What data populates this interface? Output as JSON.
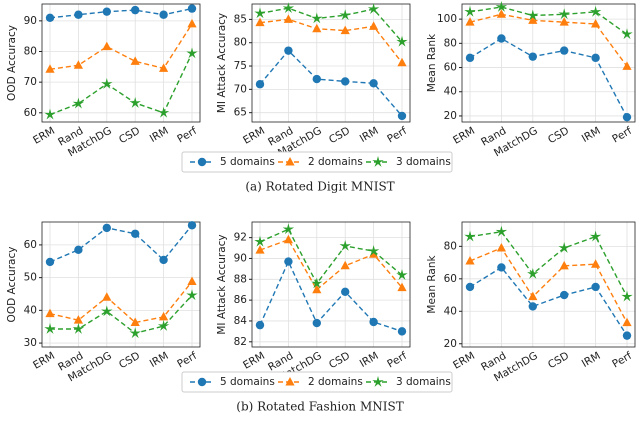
{
  "chart_data": [
    {
      "type": "line",
      "ylabel": "OOD Accuracy",
      "categories": [
        "ERM",
        "Rand",
        "MatchDG",
        "CSD",
        "IRM",
        "Perf"
      ],
      "series": [
        {
          "name": "5 domains",
          "color": "#1f77b4",
          "marker": "circle",
          "values": [
            91,
            92,
            93,
            93.5,
            92,
            94
          ]
        },
        {
          "name": "2 domains",
          "color": "#ff7f0e",
          "marker": "triangle",
          "values": [
            74.2,
            75.5,
            81.6,
            76.8,
            74.5,
            89
          ]
        },
        {
          "name": "3 domains",
          "color": "#2ca02c",
          "marker": "star",
          "values": [
            59.4,
            63,
            69.4,
            63.2,
            60,
            79.4
          ]
        }
      ],
      "ylim": [
        57,
        95.5
      ],
      "yticks": [
        60,
        70,
        80,
        90
      ],
      "grid": true
    },
    {
      "type": "line",
      "ylabel": "MI Attack Accuracy",
      "categories": [
        "ERM",
        "Rand",
        "MatchDG",
        "CSD",
        "IRM",
        "Perf"
      ],
      "series": [
        {
          "name": "5 domains",
          "color": "#1f77b4",
          "marker": "circle",
          "values": [
            71.1,
            78.3,
            72.2,
            71.7,
            71.3,
            64.3
          ]
        },
        {
          "name": "2 domains",
          "color": "#ff7f0e",
          "marker": "triangle",
          "values": [
            84.3,
            85,
            83,
            82.6,
            83.5,
            75.7
          ]
        },
        {
          "name": "3 domains",
          "color": "#2ca02c",
          "marker": "star",
          "values": [
            86.3,
            87.4,
            85.2,
            85.9,
            87.2,
            80.2
          ]
        }
      ],
      "ylim": [
        63,
        88.3
      ],
      "yticks": [
        65,
        70,
        75,
        80,
        85
      ],
      "grid": true
    },
    {
      "type": "line",
      "ylabel": "Mean Rank",
      "categories": [
        "ERM",
        "Rand",
        "MatchDG",
        "CSD",
        "IRM",
        "Perf"
      ],
      "series": [
        {
          "name": "5 domains",
          "color": "#1f77b4",
          "marker": "circle",
          "values": [
            68,
            84,
            69,
            74,
            68,
            19
          ]
        },
        {
          "name": "2 domains",
          "color": "#ff7f0e",
          "marker": "triangle",
          "values": [
            97.5,
            104,
            99,
            97.5,
            96,
            61
          ]
        },
        {
          "name": "3 domains",
          "color": "#2ca02c",
          "marker": "star",
          "values": [
            106,
            110,
            103,
            104,
            106,
            87.5
          ]
        }
      ],
      "ylim": [
        15,
        112.5
      ],
      "yticks": [
        20,
        40,
        60,
        80,
        100
      ],
      "grid": true
    },
    {
      "type": "line",
      "ylabel": "OOD Accuracy",
      "categories": [
        "ERM",
        "Rand",
        "MatchDG",
        "CSD",
        "IRM",
        "Perf"
      ],
      "series": [
        {
          "name": "5 domains",
          "color": "#1f77b4",
          "marker": "circle",
          "values": [
            54.8,
            58.5,
            65.2,
            63.4,
            55.4,
            66
          ]
        },
        {
          "name": "2 domains",
          "color": "#ff7f0e",
          "marker": "triangle",
          "values": [
            39,
            37,
            44,
            36.3,
            38,
            48.8
          ]
        },
        {
          "name": "3 domains",
          "color": "#2ca02c",
          "marker": "star",
          "values": [
            34.3,
            34.3,
            39.7,
            33,
            35.2,
            44.6
          ]
        }
      ],
      "ylim": [
        28.8,
        67
      ],
      "yticks": [
        30,
        40,
        50,
        60
      ],
      "grid": true
    },
    {
      "type": "line",
      "ylabel": "MI Attack Accuracy",
      "categories": [
        "ERM",
        "Rand",
        "MatchDG",
        "CSD",
        "IRM",
        "Perf"
      ],
      "series": [
        {
          "name": "5 domains",
          "color": "#1f77b4",
          "marker": "circle",
          "values": [
            83.6,
            89.7,
            83.8,
            86.8,
            83.9,
            83
          ]
        },
        {
          "name": "2 domains",
          "color": "#ff7f0e",
          "marker": "triangle",
          "values": [
            90.8,
            91.8,
            87,
            89.3,
            90.4,
            87.2
          ]
        },
        {
          "name": "3 domains",
          "color": "#2ca02c",
          "marker": "star",
          "values": [
            91.6,
            92.8,
            87.6,
            91.2,
            90.7,
            88.4
          ]
        }
      ],
      "ylim": [
        81.5,
        93.5
      ],
      "yticks": [
        82,
        84,
        86,
        88,
        90,
        92
      ],
      "grid": true
    },
    {
      "type": "line",
      "ylabel": "Mean Rank",
      "categories": [
        "ERM",
        "Rand",
        "MatchDG",
        "CSD",
        "IRM",
        "Perf"
      ],
      "series": [
        {
          "name": "5 domains",
          "color": "#1f77b4",
          "marker": "circle",
          "values": [
            55,
            67,
            43,
            50,
            55,
            25
          ]
        },
        {
          "name": "2 domains",
          "color": "#ff7f0e",
          "marker": "triangle",
          "values": [
            71,
            79,
            49,
            68,
            69,
            33
          ]
        },
        {
          "name": "3 domains",
          "color": "#2ca02c",
          "marker": "star",
          "values": [
            86,
            89,
            63,
            79,
            86,
            49
          ]
        }
      ],
      "ylim": [
        18,
        95
      ],
      "yticks": [
        20,
        40,
        60,
        80
      ],
      "grid": true
    }
  ],
  "captions": [
    "(a) Rotated Digit MNIST",
    "(b) Rotated Fashion MNIST"
  ]
}
